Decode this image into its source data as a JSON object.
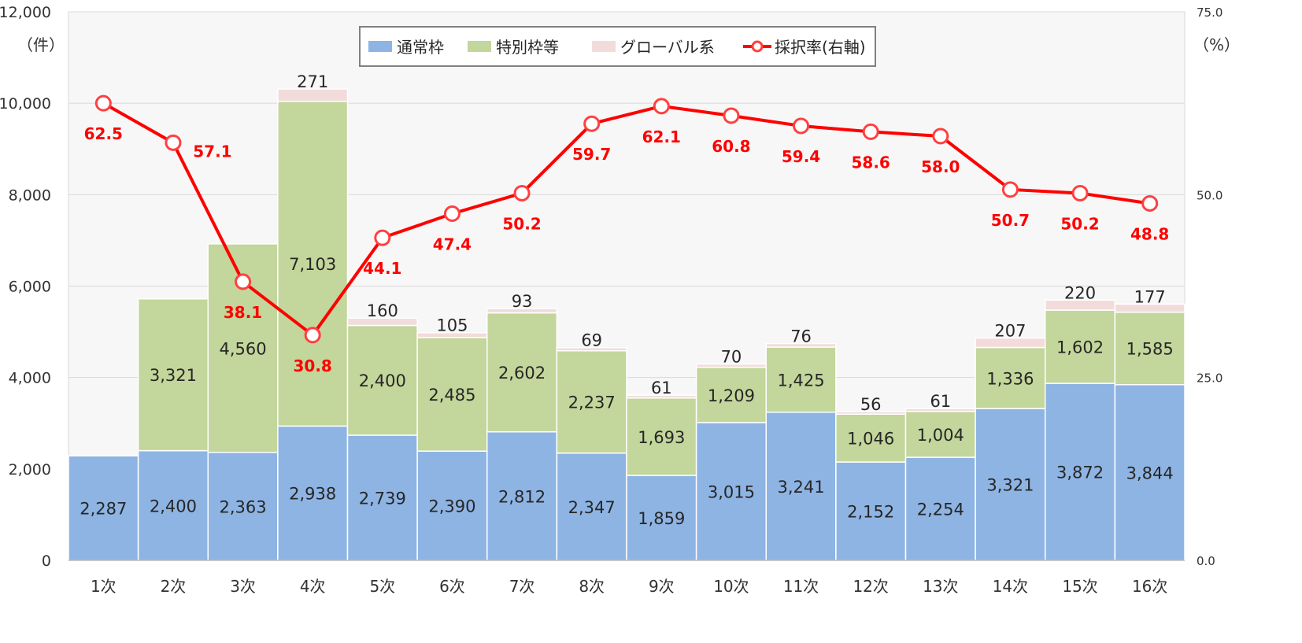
{
  "chart_data": {
    "type": "bar",
    "stacked": true,
    "categories": [
      "1次",
      "2次",
      "3次",
      "4次",
      "5次",
      "6次",
      "7次",
      "8次",
      "9次",
      "10次",
      "11次",
      "12次",
      "13次",
      "14次",
      "15次",
      "16次"
    ],
    "series": [
      {
        "name": "通常枠",
        "color": "#8EB4E3",
        "values": [
          2287,
          2400,
          2363,
          2938,
          2739,
          2390,
          2812,
          2347,
          1859,
          3015,
          3241,
          2152,
          2254,
          3321,
          3872,
          3844
        ]
      },
      {
        "name": "特別枠等",
        "color": "#C3D69B",
        "values": [
          0,
          3321,
          4560,
          7103,
          2400,
          2485,
          2602,
          2237,
          1693,
          1209,
          1425,
          1046,
          1004,
          1336,
          1602,
          1585
        ]
      },
      {
        "name": "グローバル系",
        "color": "#F2DCDB",
        "values": [
          0,
          0,
          0,
          271,
          160,
          105,
          93,
          69,
          61,
          70,
          76,
          56,
          61,
          207,
          220,
          177
        ]
      }
    ],
    "line_series": {
      "name": "採択率(右軸)",
      "color": "#FF0000",
      "axis": "right",
      "values": [
        62.5,
        57.1,
        38.1,
        30.8,
        44.1,
        47.4,
        50.2,
        59.7,
        62.1,
        60.8,
        59.4,
        58.6,
        58.0,
        50.7,
        50.2,
        48.8
      ]
    },
    "left_axis": {
      "unit_label": "（件）",
      "ylim": [
        0,
        12000
      ],
      "ticks": [
        "0",
        "2,000",
        "4,000",
        "6,000",
        "8,000",
        "10,000",
        "12,000"
      ]
    },
    "right_axis": {
      "unit_label": "（%）",
      "ylim": [
        0,
        75
      ],
      "ticks": [
        "0.0",
        "25.0",
        "50.0",
        "75.0"
      ]
    },
    "legend_position": "top-center",
    "grid": true
  }
}
